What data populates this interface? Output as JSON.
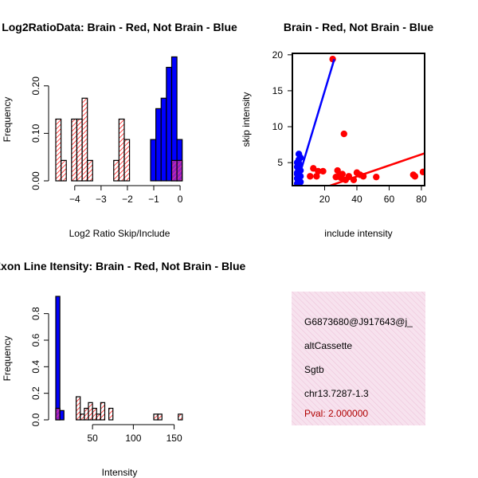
{
  "colors": {
    "red": "#ff0000",
    "blue": "#0000ff",
    "purple": "#b030c0",
    "pink_bg": "#f6dcea",
    "pval": "#b00000"
  },
  "chart_data": [
    {
      "type": "bar",
      "title": "Log2RatioData: Brain - Red, Not Brain - Blue",
      "xlabel": "Log2 Ratio Skip/Include",
      "ylabel": "Frequency",
      "xlim": [
        -4.72,
        0.24
      ],
      "ylim": [
        0,
        0.26
      ],
      "x_ticks": [
        -4,
        -3,
        -2,
        -1,
        0
      ],
      "x_tick_labels": [
        "−4",
        "−3",
        "−2",
        "−1",
        "0"
      ],
      "y_ticks": [
        0.0,
        0.1,
        0.2
      ],
      "y_tick_labels": [
        "0.00",
        "0.10",
        "0.20"
      ],
      "bin_width": 0.2,
      "series": [
        {
          "name": "Brain",
          "color": "red",
          "bins": [
            [
              -4.72,
              0.13
            ],
            [
              -4.52,
              0.043
            ],
            [
              -4.32,
              0
            ],
            [
              -4.12,
              0.13
            ],
            [
              -3.92,
              0.13
            ],
            [
              -3.72,
              0.174
            ],
            [
              -3.52,
              0.043
            ],
            [
              -3.32,
              0
            ],
            [
              -3.12,
              0
            ],
            [
              -2.92,
              0
            ],
            [
              -2.72,
              0
            ],
            [
              -2.52,
              0.043
            ],
            [
              -2.32,
              0.13
            ],
            [
              -2.12,
              0.087
            ],
            [
              -1.92,
              0
            ],
            [
              -1.72,
              0
            ],
            [
              -1.52,
              0
            ],
            [
              -1.32,
              0
            ],
            [
              -1.12,
              0
            ],
            [
              -0.92,
              0
            ],
            [
              -0.72,
              0
            ],
            [
              -0.52,
              0
            ],
            [
              -0.32,
              0.043
            ],
            [
              -0.12,
              0.043
            ]
          ]
        },
        {
          "name": "Not Brain",
          "color": "blue",
          "bins": [
            [
              -1.12,
              0.087
            ],
            [
              -0.92,
              0.152
            ],
            [
              -0.72,
              0.174
            ],
            [
              -0.52,
              0.239
            ],
            [
              -0.32,
              0.261
            ],
            [
              -0.12,
              0.087
            ]
          ]
        }
      ]
    },
    {
      "type": "scatter",
      "title": "Brain - Red, Not Brain - Blue",
      "xlabel": "include intensity",
      "ylabel": "skip intensity",
      "xlim": [
        0,
        82
      ],
      "ylim": [
        1.8,
        20.2
      ],
      "x_ticks": [
        20,
        40,
        60,
        80
      ],
      "y_ticks": [
        5,
        10,
        15,
        20
      ],
      "series": [
        {
          "name": "Brain",
          "color": "red",
          "points": [
            [
              25,
              19.4
            ],
            [
              32,
              9.0
            ],
            [
              13,
              4.2
            ],
            [
              16,
              3.8
            ],
            [
              19,
              3.8
            ],
            [
              11,
              3.1
            ],
            [
              15,
              3.1
            ],
            [
              28,
              3.9
            ],
            [
              29,
              3.1
            ],
            [
              30,
              2.9
            ],
            [
              33,
              2.6
            ],
            [
              35,
              3.1
            ],
            [
              38,
              2.6
            ],
            [
              40,
              3.6
            ],
            [
              42,
              3.3
            ],
            [
              44,
              3.1
            ],
            [
              52,
              3.0
            ],
            [
              75,
              3.3
            ],
            [
              76,
              3.1
            ],
            [
              81,
              3.7
            ],
            [
              27,
              3.0
            ],
            [
              31,
              3.4
            ]
          ],
          "fit_line": [
            [
              0,
              0.0
            ],
            [
              82,
              6.3
            ]
          ]
        },
        {
          "name": "Not Brain",
          "color": "blue",
          "points": [
            [
              4,
              6.2
            ],
            [
              5,
              5.7
            ],
            [
              4,
              5.4
            ],
            [
              3,
              5.0
            ],
            [
              4,
              4.7
            ],
            [
              3,
              4.4
            ],
            [
              4,
              4.1
            ],
            [
              5,
              3.9
            ],
            [
              3,
              3.6
            ],
            [
              4,
              3.3
            ],
            [
              5,
              3.1
            ],
            [
              3,
              2.8
            ],
            [
              4,
              2.6
            ],
            [
              5,
              2.3
            ],
            [
              3,
              2.1
            ],
            [
              4,
              4.9
            ],
            [
              3,
              3.4
            ]
          ],
          "fit_line": [
            [
              0,
              0.0
            ],
            [
              26,
              19.4
            ]
          ]
        }
      ]
    },
    {
      "type": "bar",
      "title": "Exon Line Itensity: Brain - Red, Not Brain - Blue",
      "xlabel": "Intensity",
      "ylabel": "Frequency",
      "xlim": [
        5,
        165
      ],
      "ylim": [
        0,
        0.93
      ],
      "x_ticks": [
        50,
        100,
        150
      ],
      "y_ticks": [
        0.0,
        0.2,
        0.4,
        0.6,
        0.8
      ],
      "y_tick_labels": [
        "0.0",
        "0.2",
        "0.4",
        "0.6",
        "0.8"
      ],
      "bin_width": 5,
      "series": [
        {
          "name": "Brain",
          "color": "red",
          "bins": [
            [
              5,
              0.087
            ],
            [
              10,
              0
            ],
            [
              15,
              0
            ],
            [
              20,
              0
            ],
            [
              25,
              0
            ],
            [
              30,
              0.174
            ],
            [
              35,
              0.043
            ],
            [
              40,
              0.087
            ],
            [
              45,
              0.13
            ],
            [
              50,
              0.087
            ],
            [
              55,
              0.043
            ],
            [
              60,
              0.13
            ],
            [
              65,
              0
            ],
            [
              70,
              0.087
            ],
            [
              75,
              0
            ],
            [
              80,
              0
            ],
            [
              85,
              0
            ],
            [
              90,
              0
            ],
            [
              95,
              0
            ],
            [
              100,
              0
            ],
            [
              105,
              0
            ],
            [
              110,
              0
            ],
            [
              115,
              0
            ],
            [
              120,
              0
            ],
            [
              125,
              0.043
            ],
            [
              130,
              0.043
            ],
            [
              135,
              0
            ],
            [
              140,
              0
            ],
            [
              145,
              0
            ],
            [
              150,
              0
            ],
            [
              155,
              0.043
            ]
          ]
        },
        {
          "name": "Not Brain",
          "color": "blue",
          "bins": [
            [
              5,
              0.93
            ],
            [
              10,
              0.07
            ]
          ]
        }
      ]
    }
  ],
  "info_panel": {
    "id": "G6873680@J917643@j_",
    "event": "altCassette",
    "gene": "Sgtb",
    "location": "chr13.7287-1.3",
    "pval": "Pval: 2.000000"
  }
}
